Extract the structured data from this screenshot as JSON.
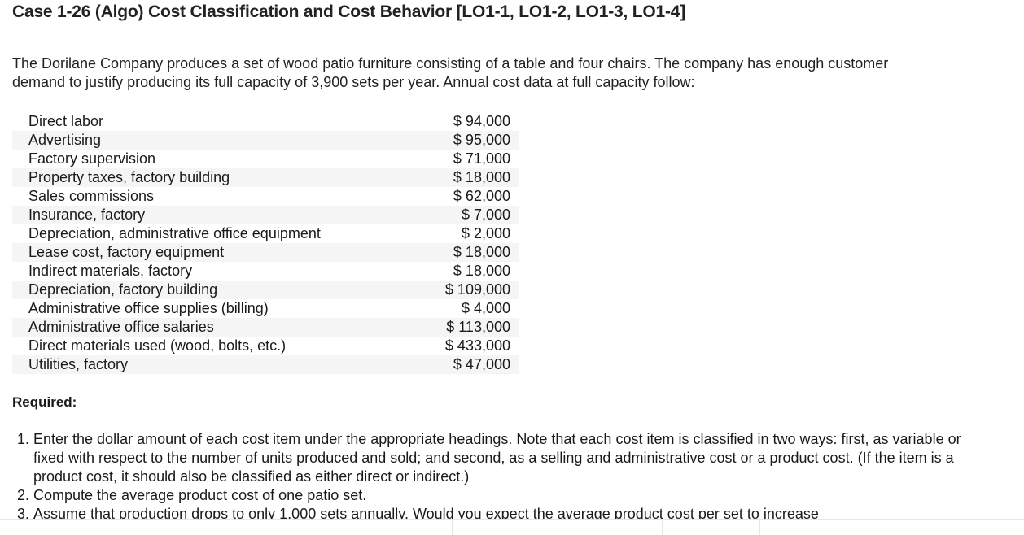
{
  "title": "Case 1-26 (Algo) Cost Classification and Cost Behavior [LO1-1, LO1-2, LO1-3, LO1-4]",
  "intro": "The Dorilane Company produces a set of wood patio furniture consisting of a table and four chairs. The company has enough customer demand to justify producing its full capacity of 3,900 sets per year. Annual cost data at full capacity follow:",
  "costs": [
    {
      "label": "Direct labor",
      "amount": "$ 94,000"
    },
    {
      "label": "Advertising",
      "amount": "$ 95,000"
    },
    {
      "label": "Factory supervision",
      "amount": "$ 71,000"
    },
    {
      "label": "Property taxes, factory building",
      "amount": "$ 18,000"
    },
    {
      "label": "Sales commissions",
      "amount": "$ 62,000"
    },
    {
      "label": "Insurance, factory",
      "amount": "$ 7,000"
    },
    {
      "label": "Depreciation, administrative office equipment",
      "amount": "$ 2,000"
    },
    {
      "label": "Lease cost, factory equipment",
      "amount": "$ 18,000"
    },
    {
      "label": "Indirect materials, factory",
      "amount": "$ 18,000"
    },
    {
      "label": "Depreciation, factory building",
      "amount": "$ 109,000"
    },
    {
      "label": "Administrative office supplies (billing)",
      "amount": "$ 4,000"
    },
    {
      "label": "Administrative office salaries",
      "amount": "$ 113,000"
    },
    {
      "label": "Direct materials used (wood, bolts, etc.)",
      "amount": "$ 433,000"
    },
    {
      "label": "Utilities, factory",
      "amount": "$ 47,000"
    }
  ],
  "required_label": "Required:",
  "requirements": [
    {
      "num": "1.",
      "text": "Enter the dollar amount of each cost item under the appropriate headings. Note that each cost item is classified in two ways: first, as variable or fixed with respect to the number of units produced and sold; and second, as a selling and administrative cost or a product cost. (If the item is a product cost, it should also be classified as either direct or indirect.)"
    },
    {
      "num": "2.",
      "text": "Compute the average product cost of one patio set."
    },
    {
      "num": "3.",
      "text": "Assume that production drops to only 1,000 sets annually. Would you expect the average product cost per set to increase"
    }
  ]
}
